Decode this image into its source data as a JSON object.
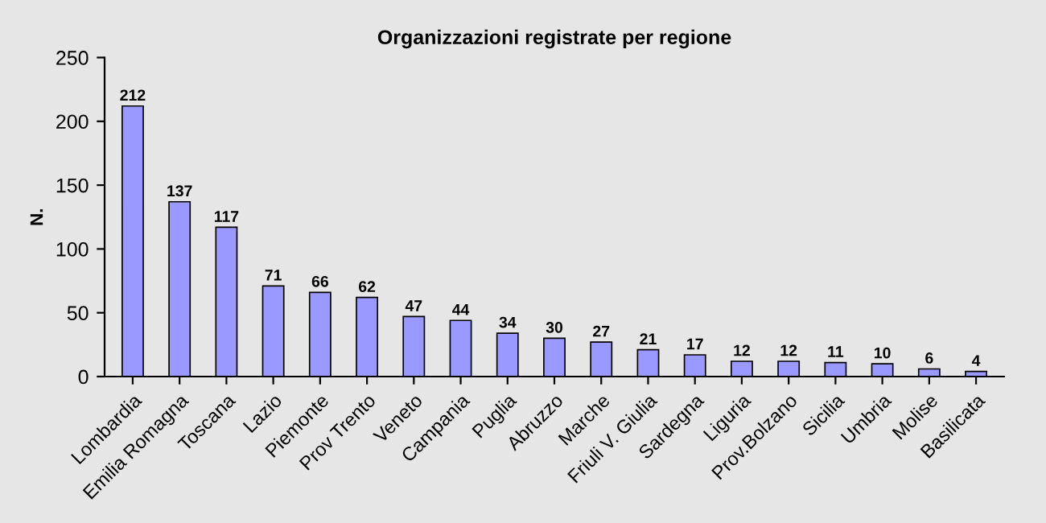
{
  "chart_data": {
    "type": "bar",
    "title": "Organizzazioni registrate per regione",
    "ylabel": "N.",
    "categories": [
      "Lombardia",
      "Emilia Romagna",
      "Toscana",
      "Lazio",
      "Piemonte",
      "Prov Trento",
      "Veneto",
      "Campania",
      "Puglia",
      "Abruzzo",
      "Marche",
      "Friuli V. Giulia",
      "Sardegna",
      "Liguria",
      "Prov.Bolzano",
      "Sicilia",
      "Umbria",
      "Molise",
      "Basilicata"
    ],
    "values": [
      212,
      137,
      117,
      71,
      66,
      62,
      47,
      44,
      34,
      30,
      27,
      21,
      17,
      12,
      12,
      11,
      10,
      6,
      4
    ],
    "color": "#9999ff",
    "ylim": [
      0,
      250
    ],
    "yticks": [
      0,
      50,
      100,
      150,
      200,
      250
    ],
    "grid": false,
    "data_labels": true
  }
}
